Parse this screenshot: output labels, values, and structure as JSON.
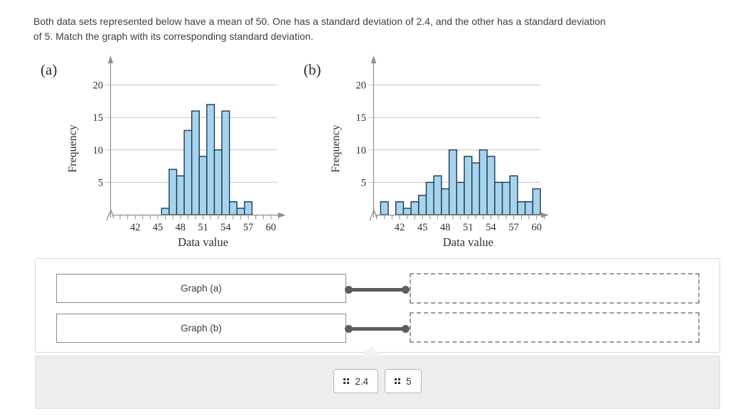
{
  "header": {
    "line1": "Both data sets represented below have a mean of 50. One has a standard deviation of 2.4, and the other has a standard deviation",
    "line2": "of 5. Match the graph with its corresponding standard deviation."
  },
  "chart_data": [
    {
      "type": "bar",
      "panel_label": "(a)",
      "xlabel": "Data value",
      "ylabel": "Frequency",
      "x": [
        46,
        47,
        48,
        49,
        50,
        51,
        52,
        53,
        54,
        55,
        56,
        57
      ],
      "values": [
        1,
        7,
        6,
        13,
        16,
        9,
        17,
        10,
        16,
        2,
        1,
        2
      ],
      "x_tick_labels": [
        42,
        45,
        48,
        51,
        54,
        57,
        60
      ],
      "y_tick_labels": [
        5,
        10,
        15,
        20
      ],
      "ylim": [
        0,
        22
      ],
      "x_axis_tick_range": [
        40,
        61
      ],
      "grid": true,
      "legend": "none",
      "bar_fill": "#A6D4EC",
      "bar_stroke": "#1C3A52"
    },
    {
      "type": "bar",
      "panel_label": "(b)",
      "xlabel": "Data value",
      "ylabel": "Frequency",
      "x": [
        40,
        41,
        42,
        43,
        44,
        45,
        46,
        47,
        48,
        49,
        50,
        51,
        52,
        53,
        54,
        55,
        56,
        57,
        58,
        59,
        60
      ],
      "values": [
        2,
        0,
        2,
        1,
        2,
        3,
        5,
        6,
        4,
        10,
        5,
        9,
        8,
        10,
        9,
        5,
        5,
        6,
        2,
        2,
        4
      ],
      "x_tick_labels": [
        42,
        45,
        48,
        51,
        54,
        57,
        60
      ],
      "y_tick_labels": [
        5,
        10,
        15,
        20
      ],
      "ylim": [
        0,
        22
      ],
      "x_axis_tick_range": [
        39,
        61
      ],
      "grid": true,
      "legend": "none",
      "bar_fill": "#A6D4EC",
      "bar_stroke": "#1C3A52"
    }
  ],
  "matching": {
    "sources": [
      {
        "label": "Graph (a)"
      },
      {
        "label": "Graph (b)"
      }
    ],
    "targets": [
      {
        "value": ""
      },
      {
        "value": ""
      }
    ],
    "answer_bank": {
      "chips": [
        {
          "label": "2.4"
        },
        {
          "label": "5"
        }
      ]
    }
  }
}
